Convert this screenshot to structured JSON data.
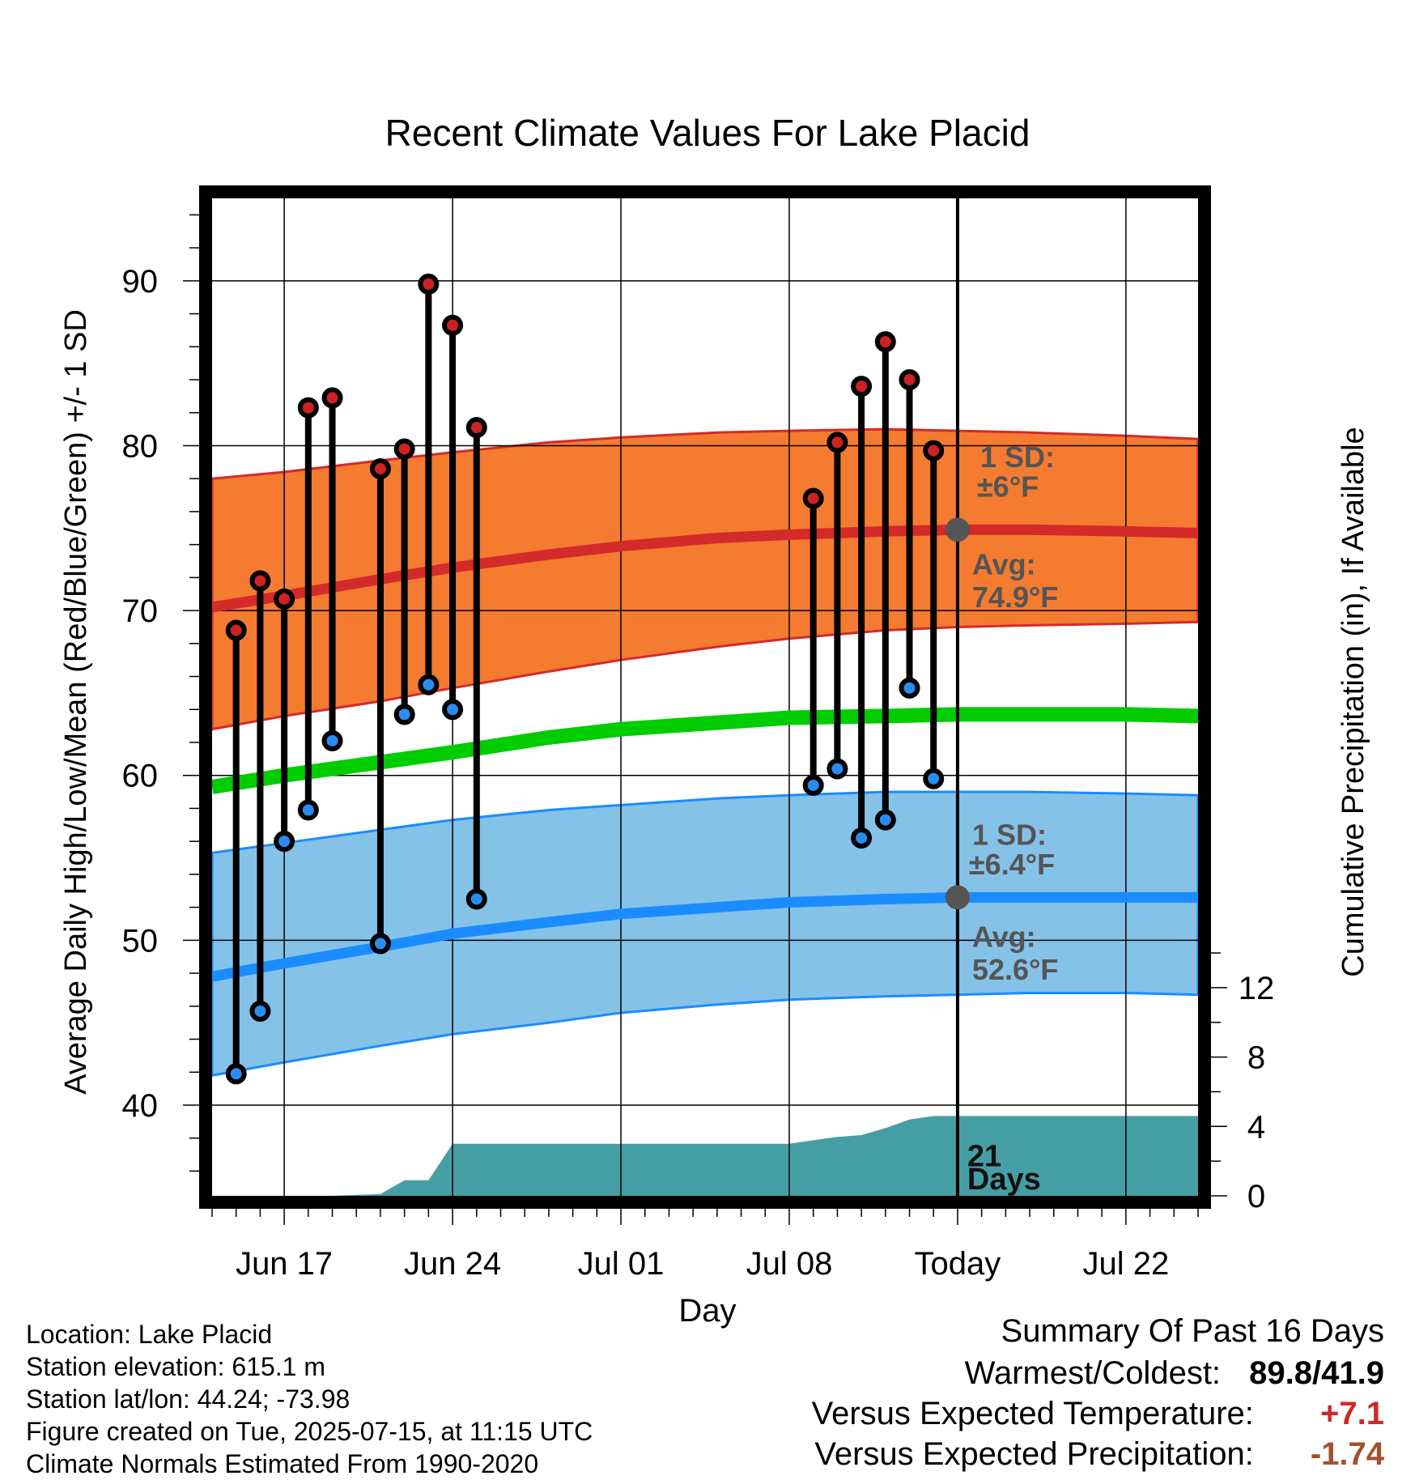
{
  "chart_data": {
    "type": "line",
    "title": "Recent Climate Values For Lake Placid",
    "xlabel": "Day",
    "ylabel": "Average Daily High/Low/Mean (Red/Blue/Green) +/- 1 SD",
    "y2label": "Cumulative Precipitation (in), If Available",
    "ylim": [
      34.5,
      95
    ],
    "y2lim": [
      0,
      57.5
    ],
    "yticks": [
      "40",
      "50",
      "60",
      "70",
      "80",
      "90"
    ],
    "y2ticks": [
      "0",
      "4",
      "8",
      "12"
    ],
    "x_range_days": [
      -31,
      10
    ],
    "x_ticks": [
      {
        "day": -28,
        "label": "Jun 17"
      },
      {
        "day": -21,
        "label": "Jun 24"
      },
      {
        "day": -14,
        "label": "Jul 01"
      },
      {
        "day": -7,
        "label": "Jul 08"
      },
      {
        "day": 0,
        "label": "Today"
      },
      {
        "day": 7,
        "label": "Jul 22"
      }
    ],
    "grid": true,
    "colors": {
      "high_band": "#f47b30",
      "high_line": "#d42a2a",
      "high_marker": "#cc2222",
      "low_band": "#85c2e8",
      "low_line": "#1a8cff",
      "low_marker": "#2a8cf0",
      "mean_line": "#00cc00",
      "precip": "#469ea5",
      "annotation": "#555555",
      "dep_temp": "#cc2a2a",
      "dep_precip": "#a0522d"
    },
    "normal_high": {
      "day": [
        -31,
        -28,
        -24,
        -21,
        -17,
        -14,
        -10,
        -7,
        -3,
        0,
        3,
        7,
        10
      ],
      "avg": [
        70.2,
        70.9,
        71.9,
        72.6,
        73.4,
        73.9,
        74.4,
        74.6,
        74.8,
        74.9,
        74.9,
        74.8,
        74.7
      ],
      "lower": [
        62.8,
        63.6,
        64.5,
        65.3,
        66.3,
        67.0,
        67.8,
        68.3,
        68.8,
        69.0,
        69.1,
        69.2,
        69.3
      ],
      "upper": [
        78.0,
        78.4,
        79.1,
        79.6,
        80.2,
        80.5,
        80.8,
        80.9,
        81.0,
        80.9,
        80.8,
        80.6,
        80.4
      ]
    },
    "normal_low": {
      "day": [
        -31,
        -28,
        -24,
        -21,
        -17,
        -14,
        -10,
        -7,
        -3,
        0,
        3,
        7,
        10
      ],
      "avg": [
        47.8,
        48.6,
        49.6,
        50.4,
        51.1,
        51.6,
        52.0,
        52.3,
        52.5,
        52.6,
        52.6,
        52.6,
        52.6
      ],
      "lower": [
        41.8,
        42.6,
        43.6,
        44.3,
        45.0,
        45.6,
        46.1,
        46.4,
        46.6,
        46.7,
        46.8,
        46.8,
        46.7
      ],
      "upper": [
        55.3,
        55.9,
        56.7,
        57.3,
        57.9,
        58.2,
        58.6,
        58.8,
        59.0,
        59.0,
        59.0,
        58.9,
        58.8
      ]
    },
    "normal_mean": {
      "day": [
        -31,
        -28,
        -24,
        -21,
        -17,
        -14,
        -10,
        -7,
        -3,
        0,
        3,
        7,
        10
      ],
      "avg": [
        59.3,
        60.0,
        60.8,
        61.4,
        62.3,
        62.8,
        63.2,
        63.5,
        63.6,
        63.7,
        63.7,
        63.7,
        63.6
      ]
    },
    "observed": {
      "day": [
        -30,
        -29,
        -28,
        -27,
        -26,
        -24,
        -23,
        -22,
        -21,
        -20,
        -6,
        -5,
        -4,
        -3,
        -2,
        -1
      ],
      "high": [
        68.8,
        71.8,
        70.7,
        82.3,
        82.9,
        78.6,
        79.8,
        89.8,
        87.3,
        81.1,
        76.8,
        80.2,
        83.6,
        86.3,
        84.0,
        79.7
      ],
      "low": [
        41.9,
        45.7,
        56.0,
        57.9,
        62.1,
        49.8,
        63.7,
        65.5,
        64.0,
        52.5,
        59.4,
        60.4,
        56.2,
        57.3,
        65.3,
        59.8
      ]
    },
    "precip_cumulative": {
      "day": [
        -31,
        -26,
        -25,
        -24,
        -23,
        -22,
        -21,
        -20,
        -8,
        -7,
        -6,
        -5,
        -4,
        -3,
        -2,
        -1,
        0,
        10
      ],
      "value": [
        0,
        0,
        0.05,
        0.1,
        0.9,
        0.9,
        3.0,
        3.0,
        3.0,
        3.0,
        3.2,
        3.4,
        3.5,
        3.9,
        4.4,
        4.6,
        4.6,
        4.6
      ]
    },
    "annotations": {
      "high_sd_label": "1 SD:",
      "high_sd_value": "±6°F",
      "high_avg_label": "Avg:",
      "high_avg_value": "74.9°F",
      "high_avg_number": 74.9,
      "low_sd_label": "1 SD:",
      "low_sd_value": "±6.4°F",
      "low_avg_label": "Avg:",
      "low_avg_value": "52.6°F",
      "low_avg_number": 52.6,
      "precip_days_number": "21",
      "precip_days_label": "Days"
    }
  },
  "info": {
    "location": "Location: Lake Placid",
    "elevation": "Station elevation: 615.1 m",
    "latlon": "Station lat/lon: 44.24; -73.98",
    "created": "Figure created on Tue, 2025-07-15, at 11:15 UTC",
    "normals": "Climate Normals Estimated From 1990-2020"
  },
  "summary": {
    "title": "Summary Of Past 16 Days",
    "warm_cold_label": "Warmest/Coldest:",
    "warm_cold_value": "89.8/41.9",
    "temp_label": "Versus Expected Temperature:",
    "temp_value": "+7.1",
    "precip_label": "Versus Expected Precipitation:",
    "precip_value": "-1.74"
  }
}
